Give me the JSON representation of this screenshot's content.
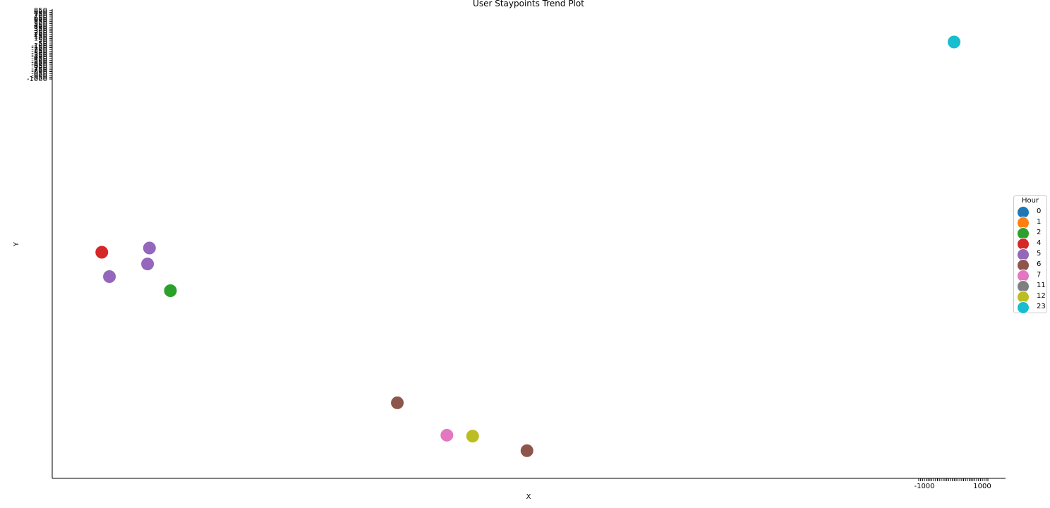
{
  "chart_data": {
    "type": "scatter",
    "title": "User Staypoints Trend Plot",
    "xlabel": "X",
    "ylabel": "Y",
    "y_ticks": [
      "850",
      "800",
      "750",
      "700",
      "650",
      "600",
      "550",
      "500",
      "450",
      "400",
      "350",
      "300",
      "250",
      "200",
      "150",
      "100",
      "50",
      "0",
      "-50",
      "-100",
      "-150",
      "-200",
      "-250",
      "-300",
      "-350",
      "-400",
      "-450",
      "-500",
      "-550",
      "-600",
      "-650",
      "-700",
      "-750",
      "-800",
      "-850",
      "-900",
      "-950",
      "-1000"
    ],
    "y_ticks_note": "tick labels are densely overlapping in the original",
    "x_ticks_visible": [
      "-1000",
      "1000"
    ],
    "legend": {
      "title": "Hour",
      "placement": "right",
      "entries": [
        {
          "label": "0",
          "color": "#1f77b4"
        },
        {
          "label": "1",
          "color": "#ff7f0e"
        },
        {
          "label": "2",
          "color": "#2ca02c"
        },
        {
          "label": "4",
          "color": "#d62728"
        },
        {
          "label": "5",
          "color": "#9467bd"
        },
        {
          "label": "6",
          "color": "#8c564b"
        },
        {
          "label": "7",
          "color": "#e377c2"
        },
        {
          "label": "11",
          "color": "#7f7f7f"
        },
        {
          "label": "12",
          "color": "#bcbd22"
        },
        {
          "label": "23",
          "color": "#17becf"
        }
      ]
    },
    "points": [
      {
        "x": 0.052,
        "y": 0.482,
        "hour": "4"
      },
      {
        "x": 0.102,
        "y": 0.491,
        "hour": "5"
      },
      {
        "x": 0.1,
        "y": 0.457,
        "hour": "5"
      },
      {
        "x": 0.06,
        "y": 0.43,
        "hour": "5"
      },
      {
        "x": 0.124,
        "y": 0.4,
        "hour": "2"
      },
      {
        "x": 0.362,
        "y": 0.161,
        "hour": "6"
      },
      {
        "x": 0.414,
        "y": 0.092,
        "hour": "7"
      },
      {
        "x": 0.441,
        "y": 0.09,
        "hour": "12"
      },
      {
        "x": 0.498,
        "y": 0.059,
        "hour": "6"
      },
      {
        "x": 0.946,
        "y": 0.93,
        "hour": "23"
      }
    ],
    "grid": false
  }
}
